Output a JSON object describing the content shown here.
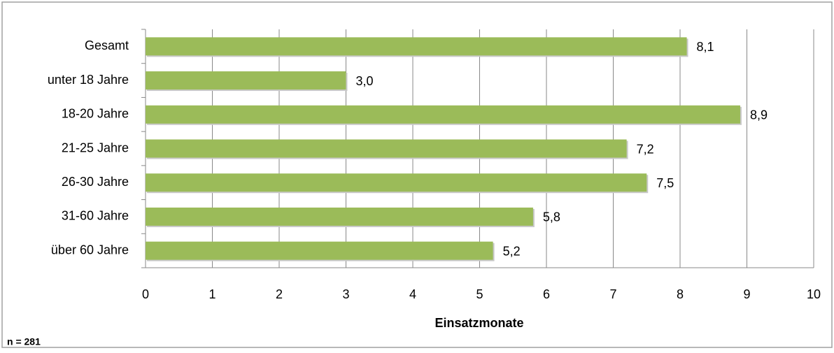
{
  "chart_data": {
    "type": "bar",
    "orientation": "horizontal",
    "categories": [
      "Gesamt",
      "unter 18 Jahre",
      "18-20 Jahre",
      "21-25 Jahre",
      "26-30 Jahre",
      "31-60 Jahre",
      "über 60 Jahre"
    ],
    "values": [
      8.1,
      3.0,
      8.9,
      7.2,
      7.5,
      5.8,
      5.2
    ],
    "value_labels": [
      "8,1",
      "3,0",
      "8,9",
      "7,2",
      "7,5",
      "5,8",
      "5,2"
    ],
    "color": "#9bbb59",
    "xlabel": "Einsatzmonate",
    "xlim": [
      0,
      10
    ],
    "xticks": [
      0,
      1,
      2,
      3,
      4,
      5,
      6,
      7,
      8,
      9,
      10
    ],
    "grid": true,
    "note": "n = 281"
  }
}
